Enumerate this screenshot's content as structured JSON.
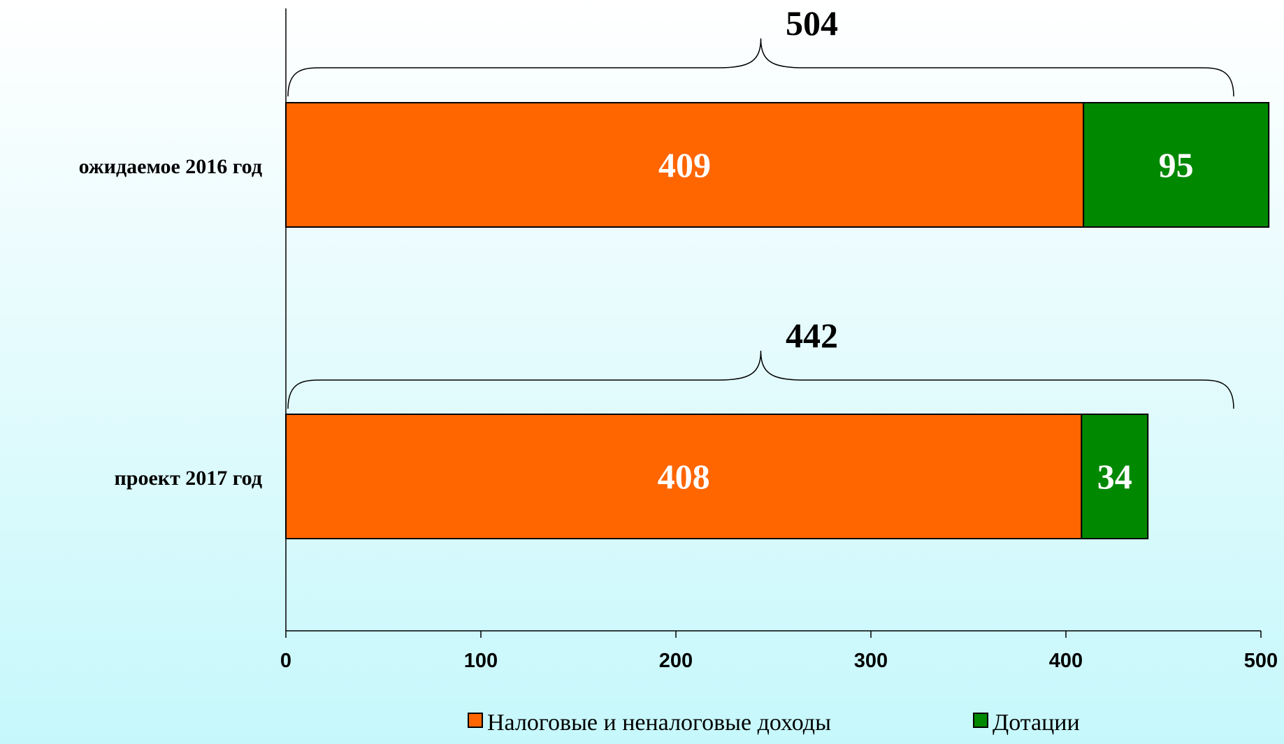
{
  "chart_data": {
    "type": "bar",
    "orientation": "horizontal",
    "stacked": true,
    "categories": [
      "ожидаемое 2016 год",
      "проект 2017 год"
    ],
    "series": [
      {
        "name": "Налоговые и неналоговые доходы",
        "values": [
          409,
          408
        ],
        "color": "#ff6600"
      },
      {
        "name": "Дотации",
        "values": [
          95,
          34
        ],
        "color": "#008800"
      }
    ],
    "totals": [
      504,
      442
    ],
    "segment_labels": [
      [
        "409",
        "95"
      ],
      [
        "408",
        "34"
      ]
    ],
    "total_labels": [
      "504",
      "442"
    ],
    "xlim": [
      0,
      500
    ],
    "x_ticks": [
      0,
      100,
      200,
      300,
      400,
      500
    ],
    "x_tick_labels": [
      "0",
      "100",
      "200",
      "300",
      "400",
      "500"
    ],
    "grid": false,
    "legend_position": "bottom-right"
  }
}
